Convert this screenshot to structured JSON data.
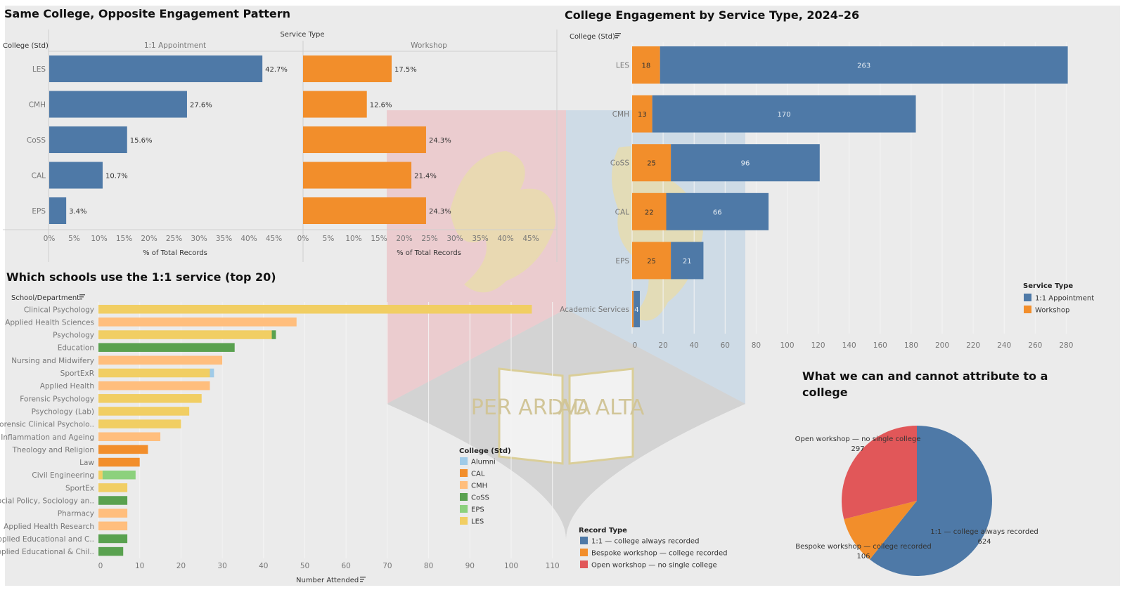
{
  "colors": {
    "one_to_one": "#4e79a7",
    "workshop": "#f28e2b",
    "open": "#e15759",
    "alumni": "#a0cbe8",
    "cal": "#f28e2b",
    "cmh": "#ffbe7d",
    "coss": "#59a14f",
    "eps": "#8cd17d",
    "les": "#f1ce63",
    "background": "#ebebeb"
  },
  "watermark": {
    "motto_left": "PER ARDVA",
    "motto_right": "AD ALTA"
  },
  "chart_data": [
    {
      "id": "pct",
      "type": "bar",
      "title": "Same College, Opposite Engagement Pattern",
      "column_header": "Service Type",
      "row_header": "College (Std)",
      "categories": [
        "LES",
        "CMH",
        "CoSS",
        "CAL",
        "EPS"
      ],
      "series": [
        {
          "name": "1:1 Appointment",
          "values": [
            42.7,
            27.6,
            15.6,
            10.7,
            3.4
          ],
          "labels": [
            "42.7%",
            "27.6%",
            "15.6%",
            "10.7%",
            "3.4%"
          ]
        },
        {
          "name": "Workshop",
          "values": [
            17.5,
            12.6,
            24.3,
            21.4,
            24.3
          ],
          "labels": [
            "17.5%",
            "12.6%",
            "24.3%",
            "21.4%",
            "24.3%"
          ]
        }
      ],
      "xlabel": "% of Total Records",
      "xticks": [
        "0%",
        "5%",
        "10%",
        "15%",
        "20%",
        "25%",
        "30%",
        "35%",
        "40%",
        "45%"
      ],
      "xlim": [
        0,
        50
      ]
    },
    {
      "id": "stacked",
      "type": "bar",
      "title": "College Engagement by Service Type, 2024–26",
      "row_header": "College (Std)",
      "categories": [
        "LES",
        "CMH",
        "CoSS",
        "CAL",
        "EPS",
        "Academic Services"
      ],
      "series": [
        {
          "name": "Workshop",
          "values": [
            18,
            13,
            25,
            22,
            25,
            1
          ],
          "labels": [
            "18",
            "13",
            "25",
            "22",
            "25",
            ""
          ]
        },
        {
          "name": "1:1 Appointment",
          "values": [
            263,
            170,
            96,
            66,
            21,
            4
          ],
          "labels": [
            "263",
            "170",
            "96",
            "66",
            "21",
            "4"
          ]
        }
      ],
      "xticks": [
        "0",
        "20",
        "40",
        "60",
        "80",
        "100",
        "120",
        "140",
        "160",
        "180",
        "200",
        "220",
        "240",
        "260",
        "280"
      ],
      "xlim": [
        0,
        285
      ],
      "legend_title": "Service Type",
      "legend": [
        "1:1 Appointment",
        "Workshop"
      ]
    },
    {
      "id": "schools",
      "type": "bar",
      "title": "Which schools use the 1:1 service (top 20)",
      "row_header": "School/Department",
      "xlabel": "Number Attended",
      "xticks": [
        "0",
        "10",
        "20",
        "30",
        "40",
        "50",
        "60",
        "70",
        "80",
        "90",
        "100",
        "110"
      ],
      "xlim": [
        0,
        110
      ],
      "legend_title": "College (Std)",
      "legend": [
        "Alumni",
        "CAL",
        "CMH",
        "CoSS",
        "EPS",
        "LES"
      ],
      "rows": [
        {
          "name": "Clinical Psychology",
          "segments": [
            {
              "college": "LES",
              "value": 105
            }
          ]
        },
        {
          "name": "Applied Health Sciences",
          "segments": [
            {
              "college": "CMH",
              "value": 48
            }
          ]
        },
        {
          "name": "Psychology",
          "segments": [
            {
              "college": "LES",
              "value": 42
            },
            {
              "college": "CoSS",
              "value": 1
            }
          ]
        },
        {
          "name": "Education",
          "segments": [
            {
              "college": "CoSS",
              "value": 33
            }
          ]
        },
        {
          "name": "Nursing and Midwifery",
          "segments": [
            {
              "college": "CMH",
              "value": 30
            }
          ]
        },
        {
          "name": "SportExR",
          "segments": [
            {
              "college": "LES",
              "value": 27
            },
            {
              "college": "Alumni",
              "value": 1
            }
          ]
        },
        {
          "name": "Applied Health",
          "segments": [
            {
              "college": "CMH",
              "value": 27
            }
          ]
        },
        {
          "name": "Forensic Psychology",
          "segments": [
            {
              "college": "LES",
              "value": 25
            }
          ]
        },
        {
          "name": "Psychology (Lab)",
          "segments": [
            {
              "college": "LES",
              "value": 22
            }
          ]
        },
        {
          "name": "Forensic Clinical Psycholo..",
          "segments": [
            {
              "college": "LES",
              "value": 20
            }
          ]
        },
        {
          "name": "Inflammation and Ageing",
          "segments": [
            {
              "college": "CMH",
              "value": 15
            }
          ]
        },
        {
          "name": "Theology and Religion",
          "segments": [
            {
              "college": "CAL",
              "value": 12
            }
          ]
        },
        {
          "name": "Law",
          "segments": [
            {
              "college": "CAL",
              "value": 10
            }
          ]
        },
        {
          "name": "Civil Engineering",
          "segments": [
            {
              "college": "LES",
              "value": 1
            },
            {
              "college": "EPS",
              "value": 8
            }
          ]
        },
        {
          "name": "SportEx",
          "segments": [
            {
              "college": "LES",
              "value": 7
            }
          ]
        },
        {
          "name": "Social Policy, Sociology an..",
          "segments": [
            {
              "college": "CoSS",
              "value": 7
            }
          ]
        },
        {
          "name": "Pharmacy",
          "segments": [
            {
              "college": "CMH",
              "value": 7
            }
          ]
        },
        {
          "name": "Applied Health Research",
          "segments": [
            {
              "college": "CMH",
              "value": 7
            }
          ]
        },
        {
          "name": "Applied Educational and C..",
          "segments": [
            {
              "college": "CoSS",
              "value": 7
            }
          ]
        },
        {
          "name": "Applied Educational & Chil..",
          "segments": [
            {
              "college": "CoSS",
              "value": 6
            }
          ]
        }
      ]
    },
    {
      "id": "pie",
      "type": "pie",
      "title": "What we can and cannot attribute to a college",
      "legend_title": "Record Type",
      "legend": [
        "1:1 — college always recorded",
        "Bespoke workshop — college recorded",
        "Open workshop — no single college"
      ],
      "slices": [
        {
          "name": "1:1 — college always recorded",
          "value": 624
        },
        {
          "name": "Bespoke workshop — college recorded",
          "value": 106
        },
        {
          "name": "Open workshop — no single college",
          "value": 297
        }
      ]
    }
  ]
}
